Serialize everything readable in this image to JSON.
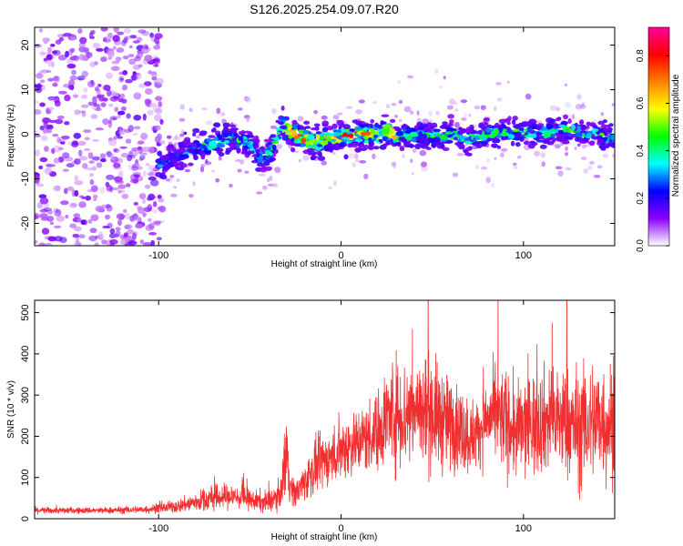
{
  "chart_data": [
    {
      "type": "heatmap",
      "title": "S126.2025.254.09.07.R20",
      "xlabel": "Height of straight line (km)",
      "ylabel": "Frequency (Hz)",
      "xlim": [
        -168,
        150
      ],
      "ylim": [
        -25,
        24
      ],
      "x_ticks": [
        -100,
        0,
        100
      ],
      "x_tick_labels": [
        "-100",
        "0",
        "100"
      ],
      "y_ticks": [
        -20,
        -10,
        0,
        10,
        20
      ],
      "y_tick_labels": [
        "-20",
        "-10",
        "0",
        "10",
        "20"
      ],
      "colorbar": {
        "label": "Normalized spectral amplitude",
        "range": [
          0,
          0.92
        ],
        "ticks": [
          0,
          0.2,
          0.4,
          0.6,
          0.8
        ],
        "tick_labels": [
          "0.0",
          "0.2",
          "0.4",
          "0.6",
          "0.8"
        ],
        "colors": [
          "#ffffff",
          "#8a00ff",
          "#0000ff",
          "#00ffff",
          "#00ff00",
          "#ffff00",
          "#ff8000",
          "#ff0000",
          "#ff00a0"
        ]
      },
      "ridge": {
        "x": [
          -100,
          -90,
          -80,
          -70,
          -60,
          -50,
          -45,
          -40,
          -36,
          -32,
          -30,
          -28,
          -25,
          -20,
          -15,
          -10,
          -5,
          0,
          10,
          20,
          25,
          30,
          40,
          50,
          60,
          70,
          80,
          90,
          100,
          110,
          120,
          130,
          140,
          150
        ],
        "y": [
          -7,
          -5,
          -3,
          -2,
          -1,
          -2,
          -5,
          -5,
          -2,
          3,
          1,
          0.5,
          0,
          -1,
          -2,
          -1,
          -1,
          -0.5,
          0,
          0,
          1,
          -0.5,
          0,
          -0.5,
          0,
          -1,
          0,
          0.5,
          0.5,
          0,
          1,
          0.5,
          0,
          -1
        ]
      }
    },
    {
      "type": "line",
      "xlabel": "Height of straight line (km)",
      "ylabel": "SNR (10 * v/v)",
      "xlim": [
        -168,
        150
      ],
      "ylim": [
        0,
        530
      ],
      "x_ticks": [
        -100,
        0,
        100
      ],
      "x_tick_labels": [
        "-100",
        "0",
        "100"
      ],
      "y_ticks": [
        0,
        100,
        200,
        300,
        400,
        500
      ],
      "y_tick_labels": [
        "0",
        "100",
        "200",
        "300",
        "400",
        "500"
      ],
      "color": "#f03030",
      "series": [
        {
          "name": "SNR",
          "x": [
            -168,
            -150,
            -130,
            -110,
            -100,
            -90,
            -80,
            -70,
            -60,
            -50,
            -40,
            -33,
            -30,
            -28,
            -25,
            -20,
            -15,
            -10,
            -5,
            0,
            10,
            20,
            25,
            30,
            35,
            40,
            45,
            50,
            55,
            60,
            65,
            70,
            75,
            80,
            85,
            90,
            95,
            100,
            110,
            120,
            130,
            140,
            150
          ],
          "mean": [
            20,
            20,
            20,
            22,
            25,
            30,
            40,
            50,
            55,
            45,
            40,
            60,
            180,
            80,
            60,
            90,
            120,
            140,
            150,
            170,
            190,
            210,
            250,
            260,
            250,
            270,
            260,
            260,
            240,
            230,
            220,
            200,
            210,
            240,
            250,
            240,
            210,
            220,
            240,
            240,
            220,
            240,
            230
          ],
          "spread": [
            10,
            10,
            10,
            12,
            14,
            20,
            30,
            40,
            40,
            30,
            35,
            40,
            150,
            50,
            40,
            60,
            80,
            80,
            80,
            100,
            100,
            120,
            150,
            170,
            170,
            180,
            170,
            170,
            160,
            140,
            130,
            120,
            100,
            120,
            140,
            160,
            140,
            160,
            160,
            170,
            180,
            190,
            180
          ]
        }
      ]
    }
  ]
}
